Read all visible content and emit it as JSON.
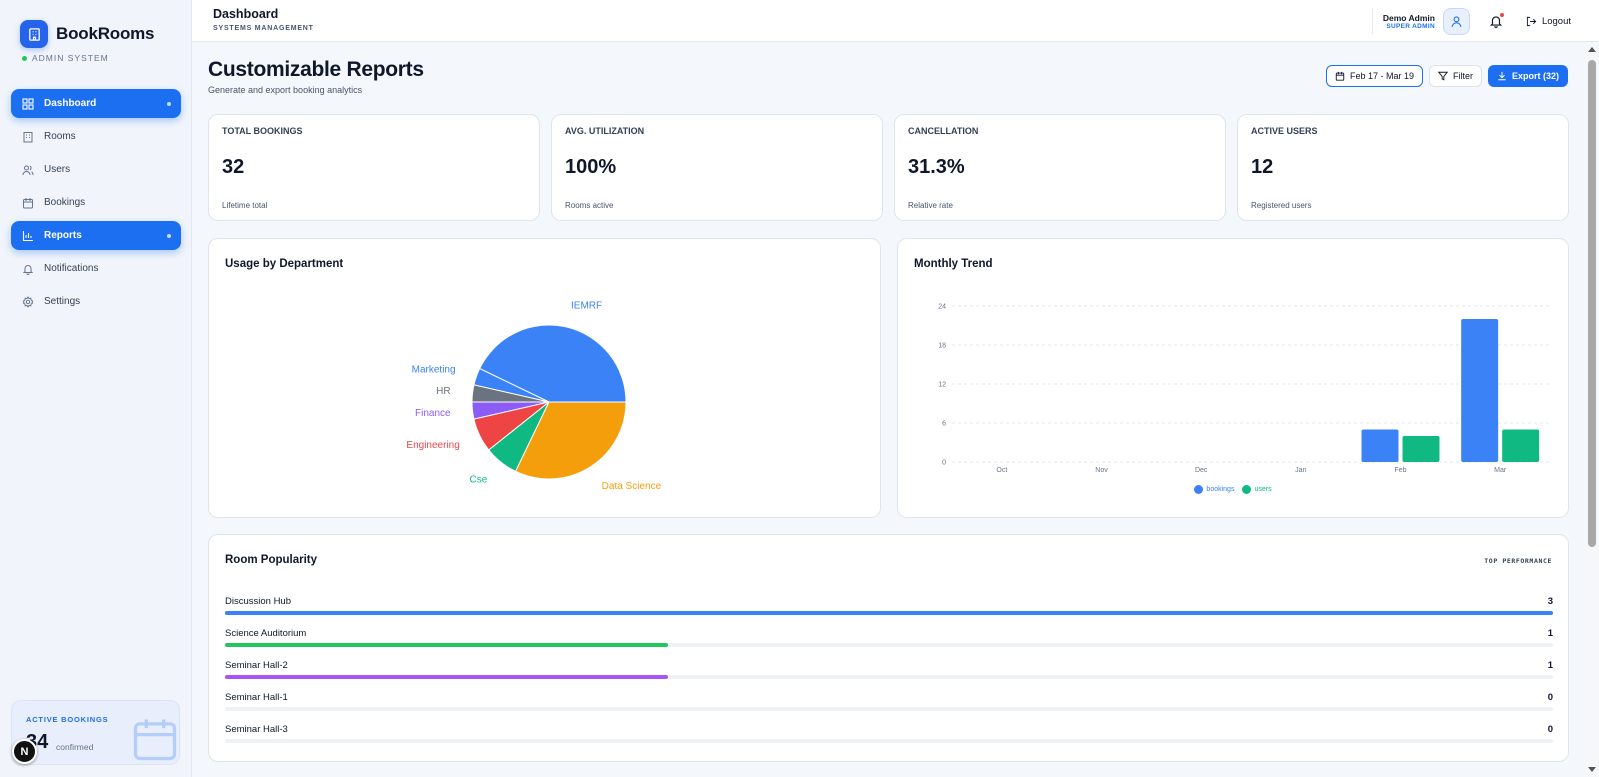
{
  "sidebar": {
    "brand": "BookRooms",
    "brand_sub": "ADMIN SYSTEM",
    "items": [
      {
        "label": "Dashboard",
        "icon": "dashboard-icon",
        "active": true
      },
      {
        "label": "Rooms",
        "icon": "building-icon",
        "active": false
      },
      {
        "label": "Users",
        "icon": "users-icon",
        "active": false
      },
      {
        "label": "Bookings",
        "icon": "calendar-icon",
        "active": false
      },
      {
        "label": "Reports",
        "icon": "bar-chart-icon",
        "active": true
      },
      {
        "label": "Notifications",
        "icon": "bell-icon",
        "active": false
      },
      {
        "label": "Settings",
        "icon": "gear-icon",
        "active": false
      }
    ],
    "active_card": {
      "label": "ACTIVE BOOKINGS",
      "value": "34",
      "sub": "confirmed"
    },
    "badge": "N"
  },
  "topbar": {
    "title": "Dashboard",
    "subtitle": "SYSTEMS MANAGEMENT",
    "user_name": "Demo Admin",
    "user_role": "SUPER ADMIN",
    "logout": "Logout"
  },
  "page": {
    "title": "Customizable Reports",
    "subtitle": "Generate and export booking analytics",
    "date_range": "Feb 17 - Mar 19",
    "filter": "Filter",
    "export": "Export (32)"
  },
  "stats": [
    {
      "label": "TOTAL BOOKINGS",
      "value": "32",
      "sub": "Lifetime total"
    },
    {
      "label": "AVG. UTILIZATION",
      "value": "100%",
      "sub": "Rooms active"
    },
    {
      "label": "CANCELLATION",
      "value": "31.3%",
      "sub": "Relative rate"
    },
    {
      "label": "ACTIVE USERS",
      "value": "12",
      "sub": "Registered users"
    }
  ],
  "colors": {
    "accent": "#1d6ff2",
    "blue": "#3b82f6",
    "green": "#10b981",
    "orange": "#f59e0b",
    "red": "#ef4444",
    "purple": "#8b5cf6",
    "gray": "#6b7280"
  },
  "chart_data": [
    {
      "type": "pie",
      "title": "Usage by Department",
      "slices": [
        {
          "label": "IEMRF",
          "value": 12,
          "color": "#3b82f6"
        },
        {
          "label": "Marketing",
          "value": 1,
          "color": "#3b82f6"
        },
        {
          "label": "HR",
          "value": 1,
          "color": "#6b7280"
        },
        {
          "label": "Finance",
          "value": 1,
          "color": "#8b5cf6"
        },
        {
          "label": "Engineering",
          "value": 2,
          "color": "#ef4444"
        },
        {
          "label": "Cse",
          "value": 2,
          "color": "#10b981"
        },
        {
          "label": "Data Science",
          "value": 9,
          "color": "#f59e0b"
        }
      ]
    },
    {
      "type": "bar",
      "title": "Monthly Trend",
      "categories": [
        "Oct",
        "Nov",
        "Dec",
        "Jan",
        "Feb",
        "Mar"
      ],
      "series": [
        {
          "name": "bookings",
          "values": [
            0,
            0,
            0,
            0,
            5,
            22
          ],
          "color": "#3b82f6"
        },
        {
          "name": "users",
          "values": [
            0,
            0,
            0,
            0,
            4,
            5
          ],
          "color": "#10b981"
        }
      ],
      "yticks": [
        "0",
        "6",
        "12",
        "18",
        "24"
      ],
      "ylim": [
        0,
        24
      ],
      "grid": true,
      "legend": "bottom"
    }
  ],
  "popularity": {
    "title": "Room Popularity",
    "tag": "TOP PERFORMANCE",
    "rows": [
      {
        "name": "Discussion Hub",
        "count": "3",
        "value": 3,
        "color": "#3b82f6"
      },
      {
        "name": "Science Auditorium",
        "count": "1",
        "value": 1,
        "color": "#22c55e"
      },
      {
        "name": "Seminar Hall-2",
        "count": "1",
        "value": 1,
        "color": "#a855f7"
      },
      {
        "name": "Seminar Hall-1",
        "count": "0",
        "value": 0,
        "color": "#3b82f6"
      },
      {
        "name": "Seminar Hall-3",
        "count": "0",
        "value": 0,
        "color": "#3b82f6"
      }
    ],
    "max": 3
  }
}
